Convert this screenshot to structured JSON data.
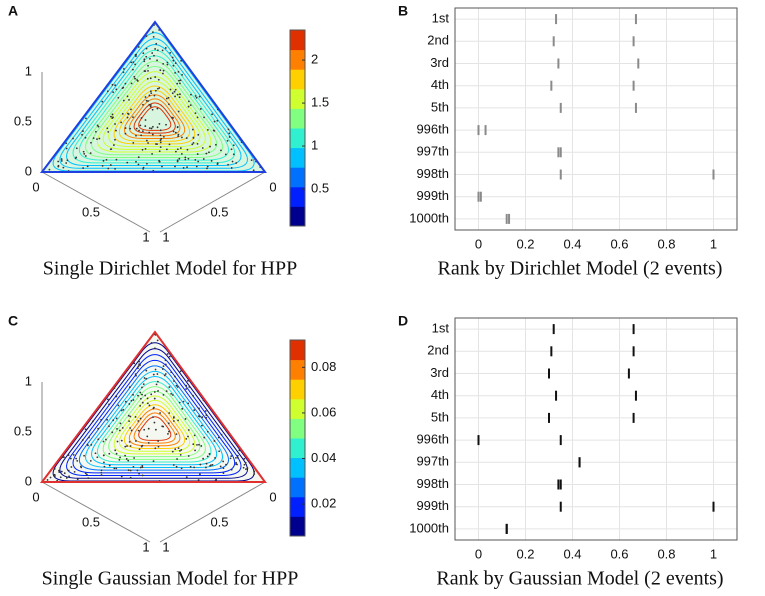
{
  "chart_data": [
    {
      "type": "ternary",
      "panel_label": "A",
      "title": "Single Dirichlet Model for HPP",
      "axis_ticks": {
        "vertical": [
          0,
          0.5,
          1
        ],
        "bottom_left": [
          0,
          0.5,
          1
        ],
        "bottom_right": [
          0,
          0.5,
          1
        ]
      },
      "outline_color": "#1f3fe0",
      "colorbar": {
        "clim": [
          0.07,
          2.35
        ],
        "ticks": [
          0.5,
          1,
          1.5,
          2
        ],
        "colors": [
          "#00008f",
          "#0020ff",
          "#0070ff",
          "#00c0ff",
          "#30f0d0",
          "#80ff80",
          "#d0ff30",
          "#ffd000",
          "#ff8000",
          "#e03000"
        ]
      }
    },
    {
      "type": "strip",
      "panel_label": "B",
      "title": "Rank by Dirichlet Model (2 events)",
      "color": "#8a8a8a",
      "categories": [
        "1st",
        "2nd",
        "3rd",
        "4th",
        "5th",
        "996th",
        "997th",
        "998th",
        "999th",
        "1000th"
      ],
      "series": [
        {
          "values": [
            0.33,
            0.32,
            0.34,
            0.31,
            0.35,
            0.0,
            0.34,
            0.35,
            0.0,
            0.12
          ]
        },
        {
          "values": [
            0.67,
            0.66,
            0.68,
            0.66,
            0.67,
            0.03,
            0.35,
            1.0,
            0.01,
            0.13
          ]
        }
      ],
      "xlim": [
        -0.1,
        1.1
      ],
      "xticks": [
        0,
        0.2,
        0.4,
        0.6,
        0.8,
        1
      ],
      "grid": true
    },
    {
      "type": "ternary",
      "panel_label": "C",
      "title": "Single Gaussian Model for HPP",
      "axis_ticks": {
        "vertical": [
          0,
          0.5,
          1
        ],
        "bottom_left": [
          0,
          0.5,
          1
        ],
        "bottom_right": [
          0,
          0.5,
          1
        ]
      },
      "outline_color": "#e03030",
      "colorbar": {
        "clim": [
          0.006,
          0.092
        ],
        "ticks": [
          0.02,
          0.04,
          0.06,
          0.08
        ],
        "colors": [
          "#00008f",
          "#0020ff",
          "#0070ff",
          "#00c0ff",
          "#30f0d0",
          "#80ff80",
          "#d0ff30",
          "#ffd000",
          "#ff8000",
          "#e03000"
        ]
      }
    },
    {
      "type": "strip",
      "panel_label": "D",
      "title": "Rank by Gaussian Model (2 events)",
      "color": "#111111",
      "categories": [
        "1st",
        "2nd",
        "3rd",
        "4th",
        "5th",
        "996th",
        "997th",
        "998th",
        "999th",
        "1000th"
      ],
      "series": [
        {
          "values": [
            0.32,
            0.31,
            0.3,
            0.33,
            0.3,
            0.0,
            0.43,
            0.34,
            0.35,
            0.12
          ]
        },
        {
          "values": [
            0.66,
            0.66,
            0.64,
            0.67,
            0.66,
            0.35,
            0.43,
            0.35,
            1.0,
            0.12
          ]
        }
      ],
      "xlim": [
        -0.1,
        1.1
      ],
      "xticks": [
        0,
        0.2,
        0.4,
        0.6,
        0.8,
        1
      ],
      "grid": true
    }
  ]
}
